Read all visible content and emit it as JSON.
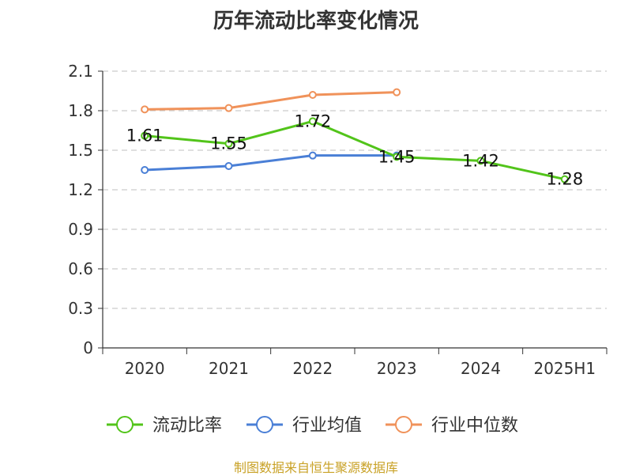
{
  "chart_data": {
    "type": "line",
    "title": "历年流动比率变化情况",
    "categories": [
      "2020",
      "2021",
      "2022",
      "2023",
      "2024",
      "2025H1"
    ],
    "ylim": [
      0,
      2.1
    ],
    "yticks": [
      "0",
      "0.3",
      "0.6",
      "0.9",
      "1.2",
      "1.5",
      "1.8",
      "2.1"
    ],
    "grid": true,
    "legend_position": "bottom",
    "series": [
      {
        "name": "流动比率",
        "color": "#52c41a",
        "values": [
          1.61,
          1.55,
          1.72,
          1.45,
          1.42,
          1.28
        ],
        "labels": [
          "1.61",
          "1.55",
          "1.72",
          "1.45",
          "1.42",
          "1.28"
        ]
      },
      {
        "name": "行业均值",
        "color": "#4a7fd6",
        "values": [
          1.35,
          1.38,
          1.46,
          1.46,
          null,
          null
        ]
      },
      {
        "name": "行业中位数",
        "color": "#f0925a",
        "values": [
          1.81,
          1.82,
          1.92,
          1.94,
          null,
          null
        ]
      }
    ]
  },
  "source": "制图数据来自恒生聚源数据库"
}
